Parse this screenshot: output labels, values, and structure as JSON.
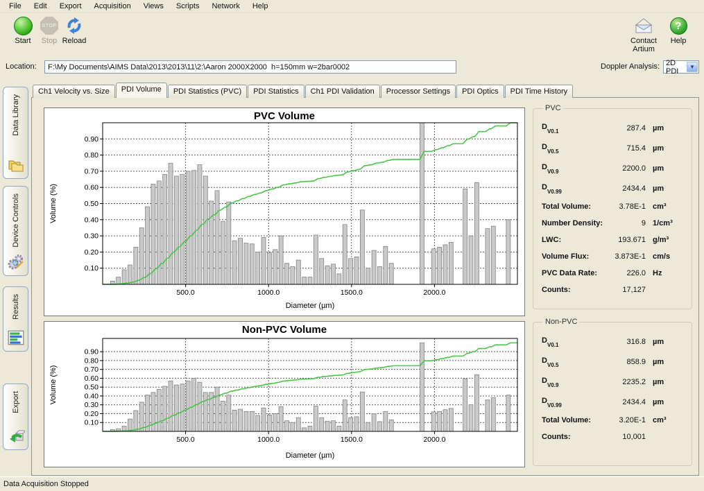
{
  "menu": {
    "items": [
      "File",
      "Edit",
      "Export",
      "Acquisition",
      "Views",
      "Scripts",
      "Network",
      "Help"
    ]
  },
  "toolbar": {
    "start_label": "Start",
    "stop_label": "Stop",
    "stop_icon_text": "STOP",
    "reload_label": "Reload",
    "contact_label": "Contact Artium",
    "help_label": "Help",
    "help_glyph": "?"
  },
  "location": {
    "label": "Location:",
    "value": "F:\\My Documents\\AIMS Data\\2013\\2013\\11\\2:\\Aaron 2000X2000  h=150mm w=2bar0002"
  },
  "doppler": {
    "label": "Doppler Analysis:",
    "value": "2D PDI",
    "arrow": "▼"
  },
  "sidebar": {
    "active": "Results",
    "items": [
      {
        "label": "Data Library"
      },
      {
        "label": "Device Controls"
      },
      {
        "label": "Results"
      },
      {
        "label": "Export"
      }
    ]
  },
  "tabs": {
    "active": "PDI Volume",
    "items": [
      "Ch1 Velocity vs. Size",
      "PDI Volume",
      "PDI Statistics (PVC)",
      "PDI Statistics",
      "Ch1 PDI Validation",
      "Processor Settings",
      "PDI Optics",
      "PDI Time History"
    ]
  },
  "stats_pvc": {
    "title": "PVC",
    "rows": [
      {
        "label": "D",
        "sub": "V0.1",
        "value": "287.4",
        "unit": "µm"
      },
      {
        "label": "D",
        "sub": "V0.5",
        "value": "715.4",
        "unit": "µm"
      },
      {
        "label": "D",
        "sub": "V0.9",
        "value": "2200.0",
        "unit": "µm"
      },
      {
        "label": "D",
        "sub": "V0.99",
        "value": "2434.4",
        "unit": "µm"
      },
      {
        "label": "Total Volume:",
        "value": "3.78E-1",
        "unit": "cm³"
      },
      {
        "label": "Number Density:",
        "value": "9",
        "unit": "1/cm³"
      },
      {
        "label": "LWC:",
        "value": "193.671",
        "unit": "g/m³"
      },
      {
        "label": "Volume Flux:",
        "value": "3.873E-1",
        "unit": "cm/s"
      },
      {
        "label": "PVC Data Rate:",
        "value": "226.0",
        "unit": "Hz"
      },
      {
        "label": "Counts:",
        "value": "17,127",
        "unit": ""
      }
    ]
  },
  "stats_nonpvc": {
    "title": "Non-PVC",
    "rows": [
      {
        "label": "D",
        "sub": "V0.1",
        "value": "316.8",
        "unit": "µm"
      },
      {
        "label": "D",
        "sub": "V0.5",
        "value": "858.9",
        "unit": "µm"
      },
      {
        "label": "D",
        "sub": "V0.9",
        "value": "2235.2",
        "unit": "µm"
      },
      {
        "label": "D",
        "sub": "V0.99",
        "value": "2434.4",
        "unit": "µm"
      },
      {
        "label": "Total Volume:",
        "value": "3.20E-1",
        "unit": "cm³"
      },
      {
        "label": "Counts:",
        "value": "10,001",
        "unit": ""
      }
    ]
  },
  "status_bar": {
    "text": "Data Acquisition Stopped"
  },
  "colors": {
    "window_bg": "#ece9d8",
    "field_border": "#7f9db9",
    "bar_fill": "#c9c9c9",
    "bar_border": "#828282",
    "line_green": "#46c646",
    "start_green": "#2fae1f",
    "help_green": "#2f9e2f"
  },
  "chart_data": [
    {
      "type": "bar",
      "title": "PVC Volume",
      "xlabel": "Diameter (µm)",
      "ylabel": "Volume (%)",
      "xlim": [
        0,
        2500
      ],
      "ylim": [
        0,
        1.0
      ],
      "xticks": [
        500,
        1000,
        1500,
        2000
      ],
      "yticks": [
        0.1,
        0.2,
        0.3,
        0.4,
        0.5,
        0.6,
        0.7,
        0.8,
        0.9
      ],
      "grid": "dashed",
      "legend": "none",
      "cumulative_line": true,
      "bars": [
        [
          60,
          0.02
        ],
        [
          95,
          0.045
        ],
        [
          130,
          0.09
        ],
        [
          165,
          0.12
        ],
        [
          200,
          0.23
        ],
        [
          235,
          0.35
        ],
        [
          270,
          0.48
        ],
        [
          305,
          0.62
        ],
        [
          340,
          0.64
        ],
        [
          375,
          0.68
        ],
        [
          410,
          0.75
        ],
        [
          445,
          0.67
        ],
        [
          480,
          0.68
        ],
        [
          515,
          0.7
        ],
        [
          550,
          0.705
        ],
        [
          585,
          0.74
        ],
        [
          620,
          0.67
        ],
        [
          655,
          0.515
        ],
        [
          690,
          0.58
        ],
        [
          725,
          0.39
        ],
        [
          760,
          0.51
        ],
        [
          795,
          0.27
        ],
        [
          830,
          0.285
        ],
        [
          865,
          0.255
        ],
        [
          900,
          0.25
        ],
        [
          935,
          0.2
        ],
        [
          970,
          0.29
        ],
        [
          1005,
          0.195
        ],
        [
          1040,
          0.215
        ],
        [
          1075,
          0.3
        ],
        [
          1110,
          0.13
        ],
        [
          1145,
          0.11
        ],
        [
          1180,
          0.15
        ],
        [
          1215,
          0.045
        ],
        [
          1250,
          0.045
        ],
        [
          1285,
          0.305
        ],
        [
          1320,
          0.16
        ],
        [
          1355,
          0.115
        ],
        [
          1390,
          0.125
        ],
        [
          1425,
          0.065
        ],
        [
          1460,
          0.37
        ],
        [
          1495,
          0.16
        ],
        [
          1530,
          0.17
        ],
        [
          1565,
          0.46
        ],
        [
          1600,
          0.1
        ],
        [
          1635,
          0.21
        ],
        [
          1670,
          0.11
        ],
        [
          1705,
          0.235
        ],
        [
          1740,
          0.13
        ],
        [
          1925,
          1.0
        ],
        [
          1995,
          0.22
        ],
        [
          2030,
          0.23
        ],
        [
          2065,
          0.245
        ],
        [
          2100,
          0.26
        ],
        [
          2185,
          0.59
        ],
        [
          2220,
          0.3
        ],
        [
          2255,
          0.63
        ],
        [
          2320,
          0.345
        ],
        [
          2355,
          0.36
        ],
        [
          2445,
          0.4
        ]
      ]
    },
    {
      "type": "bar",
      "title": "Non-PVC Volume",
      "xlabel": "Diameter (µm)",
      "ylabel": "Volume (%)",
      "xlim": [
        0,
        2500
      ],
      "ylim": [
        0,
        1.05
      ],
      "xticks": [
        500,
        1000,
        1500,
        2000
      ],
      "yticks": [
        0.1,
        0.2,
        0.3,
        0.4,
        0.5,
        0.6,
        0.7,
        0.8,
        0.9
      ],
      "grid": "dashed",
      "legend": "none",
      "cumulative_line": true,
      "bars": [
        [
          60,
          0.02
        ],
        [
          95,
          0.03
        ],
        [
          130,
          0.06
        ],
        [
          165,
          0.14
        ],
        [
          200,
          0.235
        ],
        [
          235,
          0.33
        ],
        [
          270,
          0.41
        ],
        [
          305,
          0.44
        ],
        [
          340,
          0.475
        ],
        [
          375,
          0.51
        ],
        [
          410,
          0.57
        ],
        [
          445,
          0.525
        ],
        [
          480,
          0.535
        ],
        [
          515,
          0.57
        ],
        [
          550,
          0.6
        ],
        [
          585,
          0.555
        ],
        [
          620,
          0.44
        ],
        [
          655,
          0.44
        ],
        [
          690,
          0.5
        ],
        [
          725,
          0.34
        ],
        [
          760,
          0.41
        ],
        [
          795,
          0.24
        ],
        [
          830,
          0.25
        ],
        [
          865,
          0.225
        ],
        [
          900,
          0.225
        ],
        [
          935,
          0.18
        ],
        [
          970,
          0.265
        ],
        [
          1005,
          0.185
        ],
        [
          1040,
          0.2
        ],
        [
          1075,
          0.28
        ],
        [
          1110,
          0.12
        ],
        [
          1145,
          0.1
        ],
        [
          1180,
          0.155
        ],
        [
          1215,
          0.04
        ],
        [
          1250,
          0.06
        ],
        [
          1285,
          0.285
        ],
        [
          1320,
          0.155
        ],
        [
          1355,
          0.115
        ],
        [
          1390,
          0.12
        ],
        [
          1425,
          0.06
        ],
        [
          1460,
          0.355
        ],
        [
          1495,
          0.155
        ],
        [
          1530,
          0.165
        ],
        [
          1565,
          0.445
        ],
        [
          1600,
          0.1
        ],
        [
          1635,
          0.2
        ],
        [
          1670,
          0.11
        ],
        [
          1705,
          0.225
        ],
        [
          1740,
          0.13
        ],
        [
          1925,
          1.0
        ],
        [
          1995,
          0.22
        ],
        [
          2030,
          0.225
        ],
        [
          2065,
          0.245
        ],
        [
          2100,
          0.26
        ],
        [
          2185,
          0.595
        ],
        [
          2220,
          0.3
        ],
        [
          2255,
          0.64
        ],
        [
          2320,
          0.355
        ],
        [
          2355,
          0.38
        ],
        [
          2445,
          0.41
        ]
      ]
    }
  ]
}
